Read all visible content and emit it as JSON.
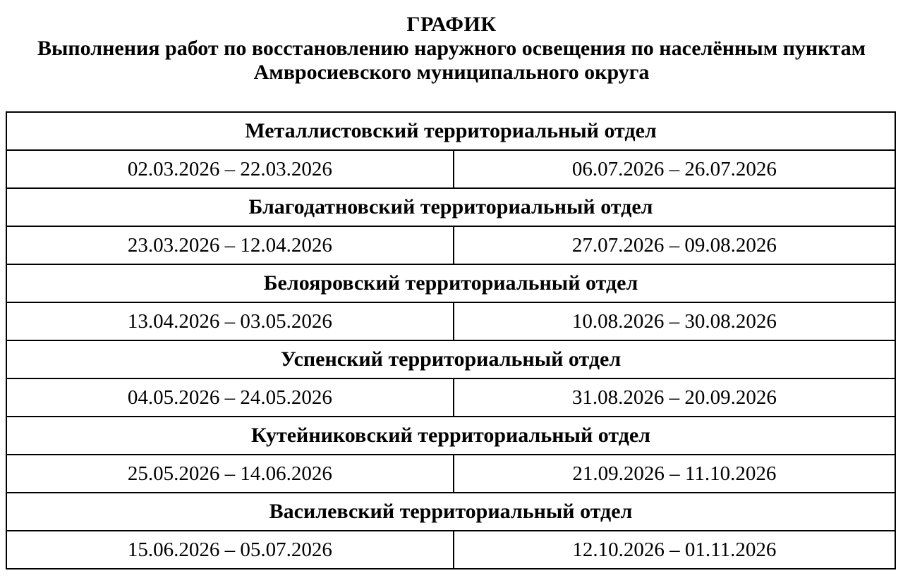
{
  "page": {
    "title": "ГРАФИК",
    "subtitle_line1": "Выполнения работ по восстановлению наружного освещения по населённым пунктам",
    "subtitle_line2": "Амвросиевского муниципального округа"
  },
  "colors": {
    "background": "#ffffff",
    "text": "#000000",
    "table_border": "#000000"
  },
  "table": {
    "sections": [
      {
        "name": "Металлистовский территориальный отдел",
        "period_first": "02.03.2026 – 22.03.2026",
        "period_second": "06.07.2026 – 26.07.2026"
      },
      {
        "name": "Благодатновский территориальный отдел",
        "period_first": "23.03.2026 – 12.04.2026",
        "period_second": "27.07.2026 – 09.08.2026"
      },
      {
        "name": "Белояровский территориальный отдел",
        "period_first": "13.04.2026 – 03.05.2026",
        "period_second": "10.08.2026 – 30.08.2026"
      },
      {
        "name": "Успенский территориальный отдел",
        "period_first": "04.05.2026 – 24.05.2026",
        "period_second": "31.08.2026 – 20.09.2026"
      },
      {
        "name": "Кутейниковский территориальный отдел",
        "period_first": "25.05.2026 – 14.06.2026",
        "period_second": "21.09.2026 – 11.10.2026"
      },
      {
        "name": "Василевский территориальный отдел",
        "period_first": "15.06.2026 – 05.07.2026",
        "period_second": "12.10.2026 – 01.11.2026"
      }
    ]
  }
}
